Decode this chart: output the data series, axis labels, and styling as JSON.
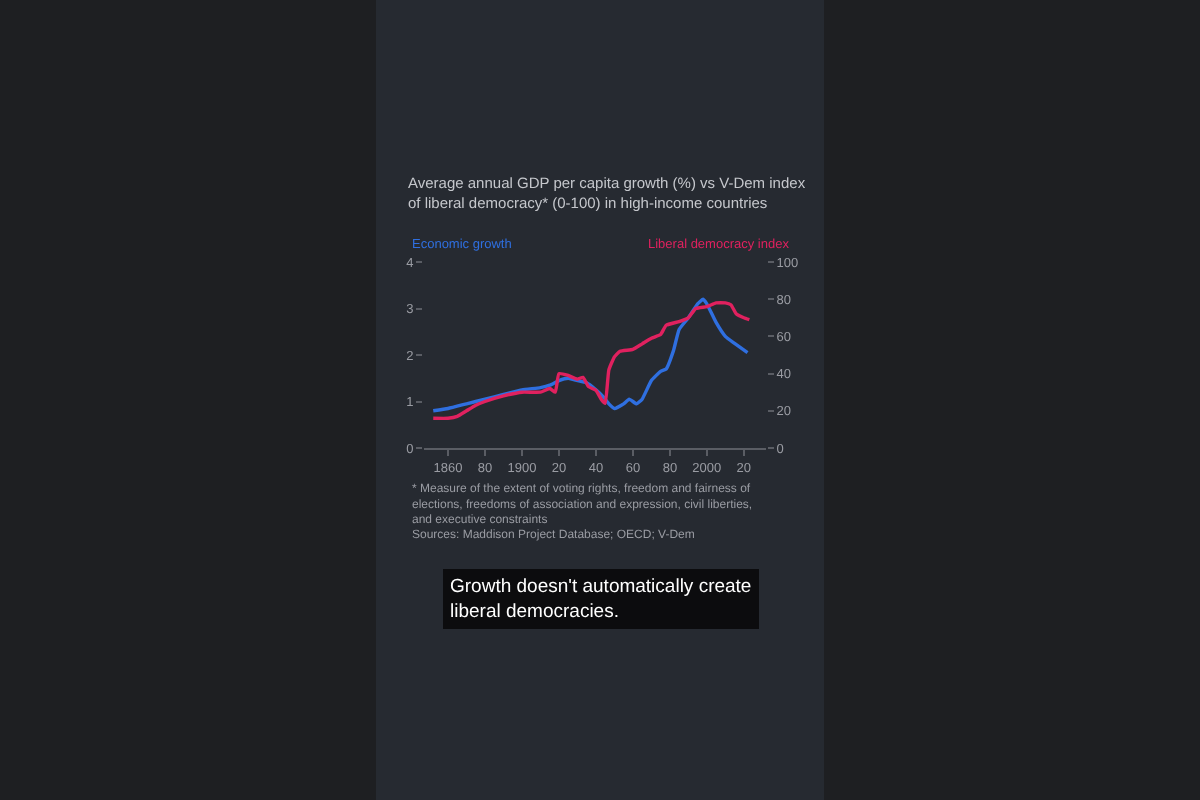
{
  "chart_data": {
    "type": "line",
    "title": "Average annual GDP per capita growth (%) vs V-Dem index of liberal democracy* (0-100) in high-income countries",
    "series": [
      {
        "name": "Economic growth",
        "color": "#2f6fe0",
        "x": [
          1852,
          1860,
          1870,
          1880,
          1890,
          1900,
          1910,
          1915,
          1920,
          1925,
          1930,
          1935,
          1940,
          1944,
          1947,
          1950,
          1955,
          1958,
          1962,
          1965,
          1970,
          1975,
          1978,
          1982,
          1985,
          1990,
          1995,
          1998,
          2000,
          2005,
          2010,
          2015,
          2022
        ],
        "values": [
          0.8,
          0.85,
          0.95,
          1.05,
          1.15,
          1.25,
          1.3,
          1.35,
          1.45,
          1.5,
          1.45,
          1.4,
          1.25,
          1.1,
          0.95,
          0.85,
          0.95,
          1.05,
          0.95,
          1.05,
          1.45,
          1.65,
          1.7,
          2.1,
          2.55,
          2.8,
          3.1,
          3.2,
          3.1,
          2.7,
          2.4,
          2.25,
          2.05
        ]
      },
      {
        "name": "Liberal democracy index",
        "color": "#e0215f",
        "axis": "y2",
        "x": [
          1852,
          1860,
          1865,
          1870,
          1875,
          1880,
          1890,
          1900,
          1910,
          1915,
          1918,
          1920,
          1925,
          1930,
          1933,
          1936,
          1940,
          1943,
          1945,
          1947,
          1950,
          1953,
          1960,
          1965,
          1970,
          1975,
          1978,
          1985,
          1990,
          1994,
          2000,
          2005,
          2010,
          2013,
          2016,
          2020,
          2023
        ],
        "values": [
          16,
          16,
          17,
          20,
          23,
          25,
          28,
          30,
          30,
          32,
          30,
          40,
          39,
          37,
          38,
          33,
          31,
          26,
          24,
          42,
          49,
          52,
          53,
          56,
          59,
          61,
          66,
          68,
          70,
          75,
          76,
          78,
          78,
          77,
          72,
          70,
          69
        ]
      }
    ],
    "xlim": [
      1847,
      2032
    ],
    "xticks": [
      1860,
      {
        "value": 1880,
        "label": "80"
      },
      1900,
      {
        "value": 1920,
        "label": "20"
      },
      {
        "value": 1940,
        "label": "40"
      },
      {
        "value": 1960,
        "label": "60"
      },
      {
        "value": 1980,
        "label": "80"
      },
      2000,
      {
        "value": 2020,
        "label": "20"
      }
    ],
    "ylim": [
      0,
      4
    ],
    "yticks": [
      0,
      1,
      2,
      3,
      4
    ],
    "y2lim": [
      0,
      100
    ],
    "y2ticks": [
      0,
      20,
      40,
      60,
      80,
      100
    ],
    "annotations": [
      "* Measure of the extent of voting rights, freedom and fairness of elections, freedoms of association and expression, civil liberties, and executive constraints",
      "Sources: Maddison Project Database; OECD; V-Dem",
      "Growth doesn't automatically create liberal democracies."
    ]
  }
}
